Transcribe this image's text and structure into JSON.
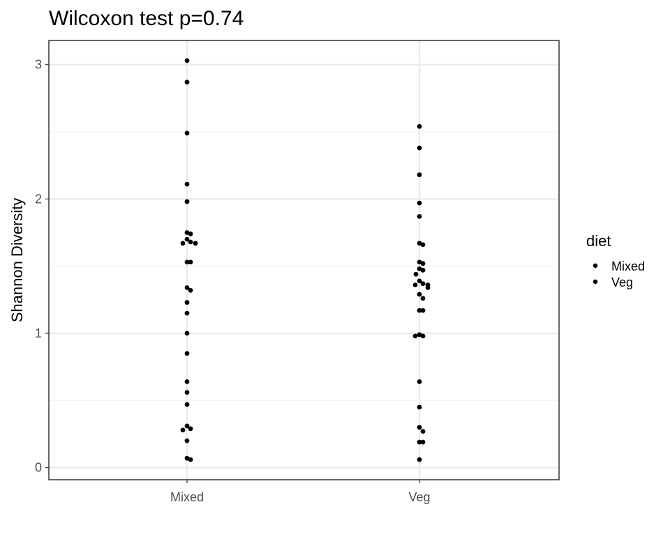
{
  "chart_data": {
    "type": "scatter",
    "title": "Wilcoxon test p=0.74",
    "xlabel": "",
    "ylabel": "Shannon Diversity",
    "categories": [
      "Mixed",
      "Veg"
    ],
    "y_ticks": [
      0,
      1,
      2,
      3
    ],
    "ylim": [
      -0.09,
      3.18
    ],
    "grid": true,
    "legend": {
      "title": "diet",
      "placement": "right",
      "entries": [
        "Mixed",
        "Veg"
      ]
    },
    "series": [
      {
        "name": "Mixed",
        "values": [
          3.03,
          2.87,
          2.49,
          2.11,
          1.98,
          1.75,
          1.74,
          1.7,
          1.68,
          1.67,
          1.67,
          1.53,
          1.53,
          1.34,
          1.32,
          1.23,
          1.15,
          1.0,
          0.85,
          0.64,
          0.56,
          0.47,
          0.31,
          0.29,
          0.28,
          0.2,
          0.07,
          0.06
        ]
      },
      {
        "name": "Veg",
        "values": [
          2.54,
          2.38,
          2.18,
          1.97,
          1.87,
          1.67,
          1.66,
          1.53,
          1.52,
          1.48,
          1.47,
          1.44,
          1.39,
          1.37,
          1.36,
          1.36,
          1.34,
          1.29,
          1.26,
          1.17,
          1.17,
          0.99,
          0.98,
          0.98,
          0.64,
          0.45,
          0.3,
          0.27,
          0.19,
          0.19,
          0.06
        ]
      }
    ],
    "colors": {
      "points": "#000000",
      "grid_major": "#ebebeb",
      "grid_minor": "#f2f2f2",
      "panel_border": "#333333",
      "tick_text": "#4d4d4d"
    }
  }
}
